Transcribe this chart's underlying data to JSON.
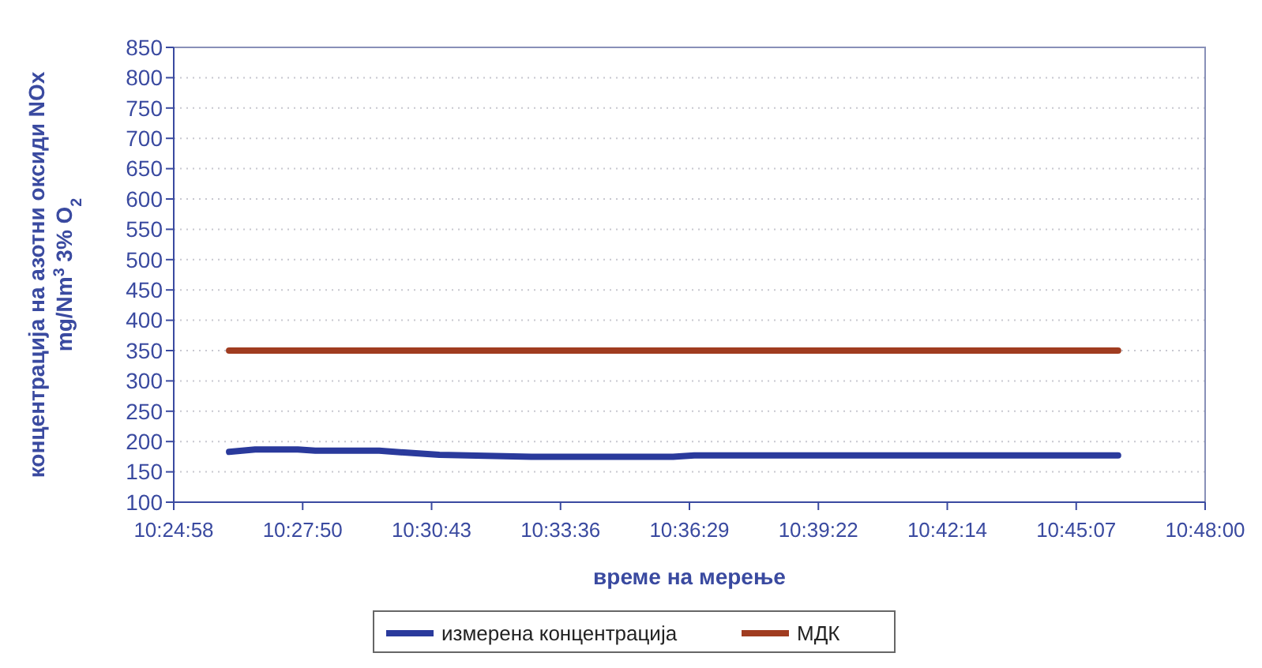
{
  "chart_data": {
    "type": "line",
    "xlabel": "време на мерење",
    "ylabel": "концентрација на азотни оксиди NOx\nmg/Nm$^{3}$ 3% O$_{2}$",
    "xlim": [
      10.416,
      10.8
    ],
    "xticks": [
      {
        "value": 10.416,
        "label": "10:24:58"
      },
      {
        "value": 10.464,
        "label": "10:27:50"
      },
      {
        "value": 10.512,
        "label": "10:30:43"
      },
      {
        "value": 10.56,
        "label": "10:33:36"
      },
      {
        "value": 10.608,
        "label": "10:36:29"
      },
      {
        "value": 10.656,
        "label": "10:39:22"
      },
      {
        "value": 10.704,
        "label": "10:42:14"
      },
      {
        "value": 10.752,
        "label": "10:45:07"
      },
      {
        "value": 10.8,
        "label": "10:48:00"
      }
    ],
    "ylim": [
      100,
      850
    ],
    "yticks": [
      100,
      150,
      200,
      250,
      300,
      350,
      400,
      450,
      500,
      550,
      600,
      650,
      700,
      750,
      800,
      850
    ],
    "grid": "y",
    "legend": "bottom",
    "marker": "none",
    "line_style": "solid",
    "series": [
      {
        "name": "измерена концентрација",
        "color": "#2a3a9c",
        "x": [
          10.4366,
          10.4463,
          10.4622,
          10.4687,
          10.4925,
          10.5017,
          10.5149,
          10.5492,
          10.6019,
          10.6098,
          10.7676
        ],
        "values": [
          183,
          187,
          187,
          185,
          185,
          182,
          178,
          175,
          175,
          177,
          177
        ]
      },
      {
        "name": "МДК",
        "color": "#a03c20",
        "x": [
          10.4366,
          10.7676
        ],
        "values": [
          350,
          350
        ]
      }
    ]
  }
}
